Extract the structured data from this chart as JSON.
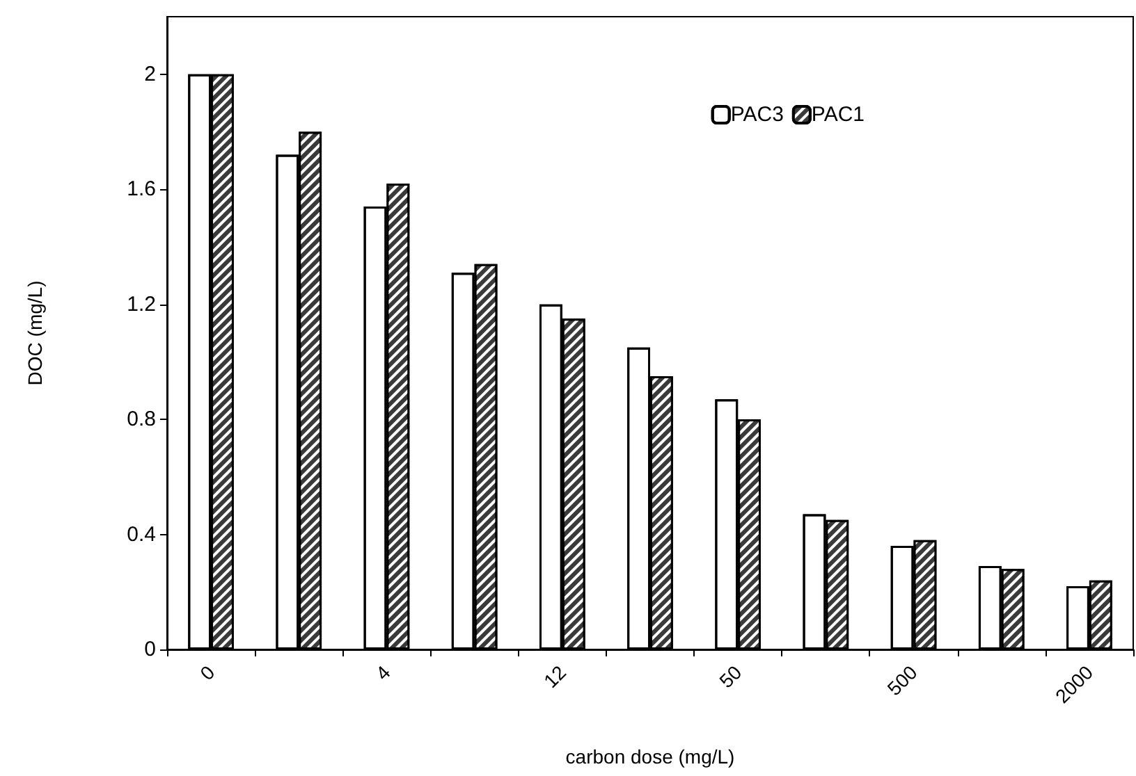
{
  "chart_data": {
    "type": "bar",
    "xlabel": "carbon dose (mg/L)",
    "ylabel": "DOC (mg/L)",
    "categories": [
      "0",
      null,
      "4",
      null,
      "12",
      null,
      "50",
      null,
      "500",
      null,
      "2000"
    ],
    "series": [
      {
        "name": "PAC3",
        "color": "#ffffff",
        "values": [
          2.0,
          1.72,
          1.54,
          1.31,
          1.2,
          1.05,
          0.87,
          0.47,
          0.36,
          0.29,
          0.22
        ]
      },
      {
        "name": "PAC1",
        "color": "#3a3a3a",
        "values": [
          2.0,
          1.8,
          1.62,
          1.34,
          1.15,
          0.95,
          0.8,
          0.45,
          0.38,
          0.28,
          0.24
        ]
      }
    ],
    "ylim": [
      0,
      2.2
    ],
    "yticks": [
      0,
      0.4,
      0.8,
      1.2,
      1.6,
      2
    ],
    "grid": false,
    "legend": "top right"
  }
}
